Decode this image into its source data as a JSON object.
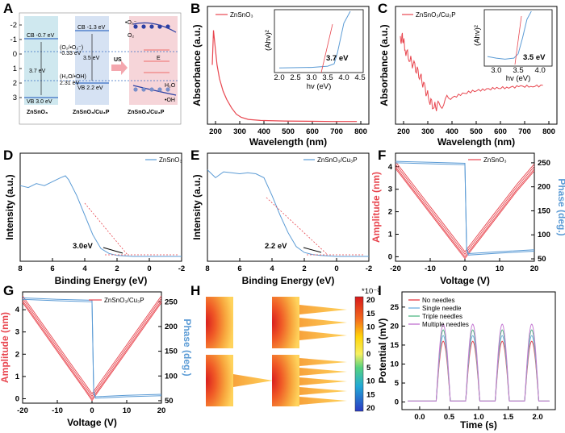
{
  "panels": {
    "A": {
      "letter": "A",
      "ylim": [
        -2,
        3
      ],
      "y_ticks": [
        "-2",
        "-1",
        "0",
        "1",
        "2",
        "3"
      ],
      "cb1": "CB -0.7 eV",
      "gap1": "3.7 eV",
      "vb1": "VB 3.0 eV",
      "name1": "ZnSnO₃",
      "cb2": "CB -1.3 eV",
      "gap2": "3.5 eV",
      "vb2": "VB 2.2 eV",
      "name2": "ZnSnO₃/Cu₃P",
      "name3": "ZnSnO₃/Cu₃P",
      "redox_o2": "(O₂/•O₂⁻)",
      "redox_o2_val": "-0.33 eV",
      "redox_oh": "(H₂O/•OH)",
      "redox_oh_val": "2.31 eV",
      "us": "US",
      "o2rad": "•O₂⁻",
      "o2": "O₂",
      "h2o": "H₂O",
      "oh": "•OH",
      "ef": "E",
      "colors": {
        "zn": "#cfe8ef",
        "cu": "#d6e2f3",
        "cu3": "#f6d5d9",
        "arrow": "#f4a7ae"
      }
    },
    "B": {
      "letter": "B",
      "xlabel": "Wavelength (nm)",
      "ylabel": "Absorbance (a.u.)",
      "x_ticks": [
        "200",
        "300",
        "400",
        "500",
        "600",
        "700",
        "800"
      ],
      "legend": "ZnSnO₃",
      "inset": {
        "ylabel": "(Ahv)²",
        "xlabel": "hv (eV)",
        "x_ticks": [
          "2.0",
          "2.5",
          "3.0",
          "3.5",
          "4.0",
          "4.5"
        ],
        "annotation": "3.7 eV"
      }
    },
    "C": {
      "letter": "C",
      "xlabel": "Wavelength (nm)",
      "ylabel": "Absorbance (a.u.)",
      "x_ticks": [
        "200",
        "300",
        "400",
        "500",
        "600",
        "700",
        "800"
      ],
      "legend": "ZnSnO₃/Cu₃P",
      "inset": {
        "ylabel": "(Ahv)²",
        "xlabel": "hv (eV)",
        "x_ticks": [
          "3.0",
          "3.5",
          "4.0"
        ],
        "annotation": "3.5 eV"
      }
    },
    "D": {
      "letter": "D",
      "xlabel": "Binding Energy (eV)",
      "ylabel": "Intensity (a.u.)",
      "x_ticks": [
        "8",
        "6",
        "4",
        "2",
        "0",
        "-2"
      ],
      "legend": "ZnSnO₃",
      "annotation": "3.0eV"
    },
    "E": {
      "letter": "E",
      "xlabel": "Binding Energy (eV)",
      "ylabel": "Intensity (a.u.)",
      "x_ticks": [
        "8",
        "6",
        "4",
        "2",
        "0",
        "-2"
      ],
      "legend": "ZnSnO₃/Cu₃P",
      "annotation": "2.2 eV"
    },
    "F": {
      "letter": "F",
      "xlabel": "Voltage (V)",
      "ylabel": "Amplitude (nm)",
      "ylabel_right": "Phase (deg.)",
      "x_ticks": [
        "-20",
        "-10",
        "0",
        "10",
        "20"
      ],
      "y_ticks": [
        "0",
        "1",
        "2",
        "3",
        "4"
      ],
      "y2_ticks": [
        "50",
        "100",
        "150",
        "200",
        "250"
      ],
      "legend": "ZnSnO₃"
    },
    "G": {
      "letter": "G",
      "xlabel": "Voltage (V)",
      "ylabel": "Amplitude (nm)",
      "ylabel_right": "Phase (deg.)",
      "x_ticks": [
        "-20",
        "-10",
        "0",
        "10",
        "20"
      ],
      "y_ticks": [
        "0",
        "1",
        "2",
        "3",
        "4"
      ],
      "y2_ticks": [
        "50",
        "100",
        "150",
        "200",
        "250"
      ],
      "legend": "ZnSnO₃/Cu₃P"
    },
    "H": {
      "letter": "H",
      "scale_label": "*10⁻³",
      "scale_ticks": [
        "20",
        "15",
        "10",
        "5",
        "0",
        "5",
        "10",
        "15",
        "20"
      ]
    },
    "I": {
      "letter": "I",
      "xlabel": "Time (s)",
      "ylabel": "Potential (mV)",
      "x_ticks": [
        "0.0",
        "0.5",
        "1.0",
        "1.5",
        "2.0"
      ],
      "y_ticks": [
        "0",
        "5",
        "10",
        "15",
        "20",
        "25"
      ],
      "legend": [
        "No needles",
        "Single needle",
        "Triple needles",
        "Multiple needles"
      ]
    }
  },
  "chart_data": [
    {
      "panel": "B",
      "type": "line",
      "series": [
        {
          "name": "ZnSnO₃",
          "x": [
            200,
            205,
            212,
            220,
            230,
            245,
            260,
            280,
            300,
            320,
            350,
            400,
            500,
            600,
            700,
            800
          ],
          "y": [
            0.55,
            0.88,
            0.72,
            0.55,
            0.42,
            0.3,
            0.22,
            0.14,
            0.08,
            0.05,
            0.03,
            0.02,
            0.015,
            0.012,
            0.01,
            0.01
          ]
        }
      ],
      "xlim": [
        180,
        850
      ],
      "ylim": [
        0,
        1
      ]
    },
    {
      "panel": "B-inset",
      "type": "line",
      "x": [
        2.0,
        3.0,
        3.5,
        3.7,
        3.8,
        3.9,
        4.0,
        4.2
      ],
      "y": [
        0.05,
        0.06,
        0.08,
        0.12,
        0.3,
        0.55,
        0.8,
        1.0
      ],
      "xlim": [
        2.0,
        4.5
      ],
      "ylim": [
        0,
        1
      ]
    },
    {
      "panel": "C",
      "type": "line",
      "series": [
        {
          "name": "ZnSnO₃/Cu₃P",
          "x": [
            200,
            210,
            220,
            240,
            260,
            280,
            300,
            320,
            340,
            360,
            400,
            450,
            500,
            550,
            600,
            650,
            700,
            750,
            800
          ],
          "y": [
            0.8,
            0.82,
            0.7,
            0.6,
            0.52,
            0.45,
            0.32,
            0.2,
            0.12,
            0.14,
            0.2,
            0.25,
            0.28,
            0.3,
            0.31,
            0.32,
            0.33,
            0.33,
            0.34
          ]
        }
      ],
      "xlim": [
        180,
        850
      ],
      "ylim": [
        0,
        1
      ]
    },
    {
      "panel": "C-inset",
      "type": "line",
      "x": [
        2.8,
        3.0,
        3.2,
        3.4,
        3.5,
        3.6,
        3.7,
        3.8
      ],
      "y": [
        0.15,
        0.12,
        0.1,
        0.12,
        0.2,
        0.5,
        0.85,
        1.0
      ],
      "xlim": [
        2.8,
        4.2
      ],
      "ylim": [
        0,
        1
      ]
    },
    {
      "panel": "D",
      "type": "line",
      "series": [
        {
          "name": "ZnSnO₃",
          "x": [
            8,
            7.5,
            7,
            6.5,
            6,
            5.5,
            5.2,
            5,
            4.5,
            4,
            3.5,
            3,
            2.5,
            2,
            1,
            0,
            -1,
            -2
          ],
          "y": [
            0.72,
            0.7,
            0.74,
            0.72,
            0.76,
            0.8,
            0.82,
            0.78,
            0.62,
            0.42,
            0.22,
            0.08,
            0.03,
            0.01,
            0.0,
            0.0,
            0.0,
            0.0
          ]
        }
      ],
      "xlim": [
        8,
        -2
      ],
      "ylim": [
        0,
        1
      ]
    },
    {
      "panel": "E",
      "type": "line",
      "series": [
        {
          "name": "ZnSnO₃/Cu₃P",
          "x": [
            8,
            7.5,
            7,
            6.5,
            6,
            5.5,
            5,
            4.5,
            4,
            3.5,
            3,
            2.5,
            2,
            1.5,
            1,
            0,
            -1,
            -2
          ],
          "y": [
            0.88,
            0.8,
            0.86,
            0.85,
            0.84,
            0.85,
            0.84,
            0.8,
            0.62,
            0.42,
            0.24,
            0.1,
            0.04,
            0.02,
            0.01,
            0.0,
            0.0,
            0.0
          ]
        }
      ],
      "xlim": [
        8,
        -2
      ],
      "ylim": [
        0,
        1
      ]
    },
    {
      "panel": "F",
      "type": "line",
      "series": [
        {
          "name": "Amplitude",
          "x": [
            -20,
            -15,
            -10,
            -5,
            -2,
            0,
            2,
            5,
            10,
            15,
            20
          ],
          "y": [
            4.0,
            3.0,
            2.0,
            1.0,
            0.4,
            0.0,
            0.4,
            1.0,
            2.0,
            3.0,
            3.9
          ]
        },
        {
          "name": "Phase",
          "x": [
            -20,
            -10,
            0,
            0.5,
            1,
            10,
            20
          ],
          "y": [
            250,
            248,
            246,
            70,
            58,
            62,
            66
          ]
        }
      ],
      "xlim": [
        -20,
        20
      ],
      "ylim": [
        -0.2,
        4.6
      ],
      "y2lim": [
        45,
        270
      ]
    },
    {
      "panel": "G",
      "type": "line",
      "series": [
        {
          "name": "Amplitude",
          "x": [
            -20,
            -15,
            -10,
            -5,
            -2,
            0,
            2,
            5,
            10,
            15,
            20
          ],
          "y": [
            4.4,
            3.3,
            2.2,
            1.1,
            0.45,
            0.0,
            0.45,
            1.1,
            2.2,
            3.3,
            4.4
          ]
        },
        {
          "name": "Phase",
          "x": [
            -20,
            -10,
            0,
            0.5,
            1,
            10,
            20
          ],
          "y": [
            255,
            252,
            250,
            65,
            55,
            58,
            60
          ]
        }
      ],
      "xlim": [
        -20,
        20
      ],
      "ylim": [
        -0.2,
        4.8
      ],
      "y2lim": [
        45,
        270
      ]
    },
    {
      "panel": "I",
      "type": "line",
      "x_peaks": [
        0.4,
        0.9,
        1.4,
        1.9
      ],
      "series": [
        {
          "name": "No needles",
          "peak": 16
        },
        {
          "name": "Single needle",
          "peak": 17.5
        },
        {
          "name": "Triple needles",
          "peak": 19
        },
        {
          "name": "Multiple needles",
          "peak": 20.5
        }
      ],
      "xlim": [
        -0.3,
        2.3
      ],
      "ylim": [
        -2,
        29
      ]
    }
  ],
  "colors": {
    "red": "#e8464f",
    "blue": "#5b9bd5",
    "lblue": "#79b4e0",
    "green": "#5dbd8f",
    "purple": "#c57bd3"
  }
}
